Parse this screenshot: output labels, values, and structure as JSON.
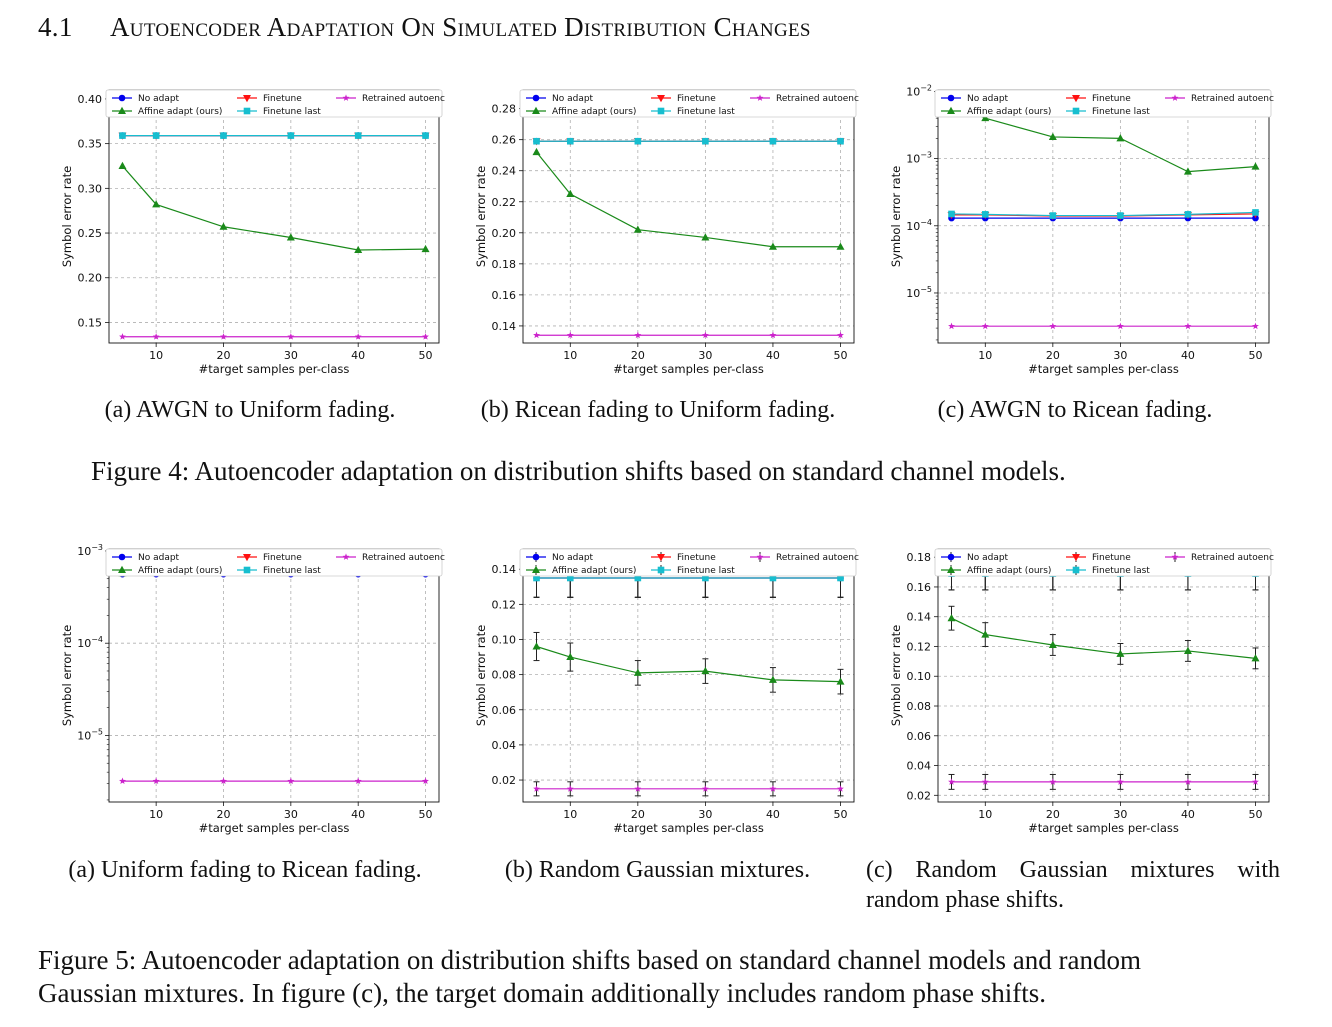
{
  "section": {
    "number": "4.1",
    "title": "Autoencoder Adaptation On Simulated Distribution Changes"
  },
  "colors": {
    "no_adapt": "#0000ee",
    "affine": "#1a8a1a",
    "finetune": "#ff1010",
    "finetune_last": "#17becf",
    "retrained": "#cc22cc"
  },
  "legend_labels": [
    "No adapt",
    "Finetune",
    "Retrained autoenc",
    "Affine adapt (ours)",
    "Finetune last"
  ],
  "figure4": {
    "caption": "Figure 4: Autoencoder adaptation on distribution shifts based on standard channel models."
  },
  "figure5": {
    "caption_line1": "Figure 5: Autoencoder adaptation on distribution shifts based on standard channel models and random",
    "caption_line2": "Gaussian mixtures. In figure (c), the target domain additionally includes random phase shifts."
  },
  "chart_data": [
    {
      "id": "fig4a",
      "type": "line",
      "scale": "linear",
      "caption": "(a) AWGN to Uniform fading.",
      "xlabel": "#target samples per-class",
      "ylabel": "Symbol error rate",
      "x": [
        5,
        10,
        20,
        30,
        40,
        50
      ],
      "xlim": [
        3,
        52
      ],
      "xticks": [
        10,
        20,
        30,
        40,
        50
      ],
      "ylim": [
        0.127,
        0.41
      ],
      "yticks": [
        0.15,
        0.2,
        0.25,
        0.3,
        0.35,
        0.4
      ],
      "ytick_labels": [
        "0.15",
        "0.20",
        "0.25",
        "0.30",
        "0.35",
        "0.40"
      ],
      "series": [
        {
          "name": "No adapt",
          "key": "no_adapt",
          "marker": "circle",
          "values": [
            0.359,
            0.359,
            0.359,
            0.359,
            0.359,
            0.359
          ]
        },
        {
          "name": "Finetune",
          "key": "finetune",
          "marker": "tri-down",
          "values": [
            0.359,
            0.359,
            0.359,
            0.359,
            0.359,
            0.359
          ]
        },
        {
          "name": "Finetune last",
          "key": "finetune_last",
          "marker": "square",
          "values": [
            0.359,
            0.359,
            0.359,
            0.359,
            0.359,
            0.359
          ]
        },
        {
          "name": "Affine adapt (ours)",
          "key": "affine",
          "marker": "tri-up",
          "values": [
            0.325,
            0.282,
            0.257,
            0.245,
            0.231,
            0.232
          ]
        },
        {
          "name": "Retrained autoenc",
          "key": "retrained",
          "marker": "star",
          "values": [
            0.134,
            0.134,
            0.134,
            0.134,
            0.134,
            0.134
          ]
        }
      ]
    },
    {
      "id": "fig4b",
      "type": "line",
      "scale": "linear",
      "caption": "(b) Ricean fading to Uniform fading.",
      "xlabel": "#target samples per-class",
      "ylabel": "Symbol error rate",
      "x": [
        5,
        10,
        20,
        30,
        40,
        50
      ],
      "xlim": [
        3,
        52
      ],
      "xticks": [
        10,
        20,
        30,
        40,
        50
      ],
      "ylim": [
        0.129,
        0.292
      ],
      "yticks": [
        0.14,
        0.16,
        0.18,
        0.2,
        0.22,
        0.24,
        0.26,
        0.28
      ],
      "ytick_labels": [
        "0.14",
        "0.16",
        "0.18",
        "0.20",
        "0.22",
        "0.24",
        "0.26",
        "0.28"
      ],
      "series": [
        {
          "name": "No adapt",
          "key": "no_adapt",
          "marker": "circle",
          "values": [
            0.259,
            0.259,
            0.259,
            0.259,
            0.259,
            0.259
          ]
        },
        {
          "name": "Finetune",
          "key": "finetune",
          "marker": "tri-down",
          "values": [
            0.259,
            0.259,
            0.259,
            0.259,
            0.259,
            0.259
          ]
        },
        {
          "name": "Finetune last",
          "key": "finetune_last",
          "marker": "square",
          "values": [
            0.259,
            0.259,
            0.259,
            0.259,
            0.259,
            0.259
          ]
        },
        {
          "name": "Affine adapt (ours)",
          "key": "affine",
          "marker": "tri-up",
          "values": [
            0.252,
            0.225,
            0.202,
            0.197,
            0.191,
            0.191
          ]
        },
        {
          "name": "Retrained autoenc",
          "key": "retrained",
          "marker": "star",
          "values": [
            0.134,
            0.134,
            0.134,
            0.134,
            0.134,
            0.134
          ]
        }
      ]
    },
    {
      "id": "fig4c",
      "type": "line",
      "scale": "log",
      "caption": "(c) AWGN to Ricean fading.",
      "xlabel": "#target samples per-class",
      "ylabel": "Symbol error rate",
      "x": [
        5,
        10,
        20,
        30,
        40,
        50
      ],
      "xlim": [
        3,
        52
      ],
      "xticks": [
        10,
        20,
        30,
        40,
        50
      ],
      "ylim": [
        1.8e-06,
        0.0105
      ],
      "yticks": [
        1e-05,
        0.0001,
        0.001,
        0.01
      ],
      "ytick_labels": [
        "10",
        "10",
        "10",
        "10"
      ],
      "ytick_exponents": [
        "−5",
        "−4",
        "−3",
        "−2"
      ],
      "series": [
        {
          "name": "No adapt",
          "key": "no_adapt",
          "marker": "circle",
          "values": [
            0.00013,
            0.00013,
            0.00013,
            0.00013,
            0.00013,
            0.00013
          ]
        },
        {
          "name": "Finetune",
          "key": "finetune",
          "marker": "tri-down",
          "values": [
            0.000145,
            0.000145,
            0.00014,
            0.00014,
            0.000145,
            0.00015
          ]
        },
        {
          "name": "Finetune last",
          "key": "finetune_last",
          "marker": "square",
          "values": [
            0.00015,
            0.000148,
            0.000142,
            0.000142,
            0.000148,
            0.000158
          ]
        },
        {
          "name": "Affine adapt (ours)",
          "key": "affine",
          "marker": "tri-up",
          "values": [
            0.0065,
            0.004,
            0.0021,
            0.002,
            0.00064,
            0.00076
          ]
        },
        {
          "name": "Retrained autoenc",
          "key": "retrained",
          "marker": "star",
          "values": [
            3.2e-06,
            3.2e-06,
            3.2e-06,
            3.2e-06,
            3.2e-06,
            3.2e-06
          ]
        }
      ]
    },
    {
      "id": "fig5a",
      "type": "line",
      "scale": "log",
      "caption": "(a) Uniform fading to Ricean fading.",
      "xlabel": "#target samples per-class",
      "ylabel": "Symbol error rate",
      "x": [
        5,
        10,
        20,
        30,
        40,
        50
      ],
      "xlim": [
        3,
        52
      ],
      "xticks": [
        10,
        20,
        30,
        40,
        50
      ],
      "ylim": [
        1.9e-06,
        0.00105
      ],
      "yticks": [
        1e-05,
        0.0001,
        0.001
      ],
      "ytick_labels": [
        "10",
        "10",
        "10"
      ],
      "ytick_exponents": [
        "−5",
        "−4",
        "−3"
      ],
      "series": [
        {
          "name": "No adapt",
          "key": "no_adapt",
          "marker": "circle",
          "values": [
            0.00056,
            0.00056,
            0.00056,
            0.00056,
            0.00056,
            0.00056
          ]
        },
        {
          "name": "Finetune",
          "key": "finetune",
          "marker": "tri-down",
          "values": [
            0.00075,
            0.00075,
            0.00078,
            0.00076,
            0.00075,
            0.00076
          ]
        },
        {
          "name": "Finetune last",
          "key": "finetune_last",
          "marker": "square",
          "values": [
            0.00076,
            0.00077,
            0.00079,
            0.00078,
            0.00077,
            0.00078
          ]
        },
        {
          "name": "Affine adapt (ours)",
          "key": "affine",
          "marker": "tri-up",
          "values": [
            0.00057,
            0.00063,
            0.00062,
            0.00069,
            0.00059,
            0.00061
          ]
        },
        {
          "name": "Retrained autoenc",
          "key": "retrained",
          "marker": "star",
          "values": [
            3.2e-06,
            3.2e-06,
            3.2e-06,
            3.2e-06,
            3.2e-06,
            3.2e-06
          ]
        }
      ]
    },
    {
      "id": "fig5b",
      "type": "line",
      "scale": "linear",
      "caption": "(b) Random Gaussian mixtures.",
      "xlabel": "#target samples per-class",
      "ylabel": "Symbol error rate",
      "x": [
        5,
        10,
        20,
        30,
        40,
        50
      ],
      "xlim": [
        3,
        52
      ],
      "xticks": [
        10,
        20,
        30,
        40,
        50
      ],
      "ylim": [
        0.0075,
        0.1515
      ],
      "yticks": [
        0.02,
        0.04,
        0.06,
        0.08,
        0.1,
        0.12,
        0.14
      ],
      "ytick_labels": [
        "0.02",
        "0.04",
        "0.06",
        "0.08",
        "0.10",
        "0.12",
        "0.14"
      ],
      "series": [
        {
          "name": "No adapt",
          "key": "no_adapt",
          "marker": "circle",
          "values": [
            0.135,
            0.135,
            0.135,
            0.135,
            0.135,
            0.135
          ],
          "err": [
            0.011,
            0.011,
            0.011,
            0.011,
            0.011,
            0.011
          ]
        },
        {
          "name": "Finetune",
          "key": "finetune",
          "marker": "tri-down",
          "values": [
            0.135,
            0.135,
            0.135,
            0.135,
            0.135,
            0.135
          ],
          "err": [
            0.011,
            0.011,
            0.011,
            0.011,
            0.011,
            0.011
          ]
        },
        {
          "name": "Finetune last",
          "key": "finetune_last",
          "marker": "square",
          "values": [
            0.135,
            0.135,
            0.135,
            0.135,
            0.135,
            0.135
          ],
          "err": [
            0.011,
            0.011,
            0.011,
            0.011,
            0.011,
            0.011
          ]
        },
        {
          "name": "Affine adapt (ours)",
          "key": "affine",
          "marker": "tri-up",
          "values": [
            0.096,
            0.09,
            0.081,
            0.082,
            0.077,
            0.076
          ],
          "err": [
            0.008,
            0.008,
            0.007,
            0.007,
            0.007,
            0.007
          ]
        },
        {
          "name": "Retrained autoenc",
          "key": "retrained",
          "marker": "star",
          "values": [
            0.015,
            0.015,
            0.015,
            0.015,
            0.015,
            0.015
          ],
          "err": [
            0.004,
            0.004,
            0.004,
            0.004,
            0.004,
            0.004
          ]
        }
      ]
    },
    {
      "id": "fig5c",
      "type": "line",
      "scale": "linear",
      "caption": "(c) Random Gaussian mixtures with random phase shifts.",
      "xlabel": "#target samples per-class",
      "ylabel": "Symbol error rate",
      "x": [
        5,
        10,
        20,
        30,
        40,
        50
      ],
      "xlim": [
        3,
        52
      ],
      "xticks": [
        10,
        20,
        30,
        40,
        50
      ],
      "ylim": [
        0.0155,
        0.1855
      ],
      "yticks": [
        0.02,
        0.04,
        0.06,
        0.08,
        0.1,
        0.12,
        0.14,
        0.16,
        0.18
      ],
      "ytick_labels": [
        "0.02",
        "0.04",
        "0.06",
        "0.08",
        "0.10",
        "0.12",
        "0.14",
        "0.16",
        "0.18"
      ],
      "series": [
        {
          "name": "No adapt",
          "key": "no_adapt",
          "marker": "circle",
          "values": [
            0.169,
            0.169,
            0.169,
            0.169,
            0.169,
            0.169
          ],
          "err": [
            0.011,
            0.011,
            0.011,
            0.011,
            0.011,
            0.011
          ]
        },
        {
          "name": "Finetune",
          "key": "finetune",
          "marker": "tri-down",
          "values": [
            0.169,
            0.169,
            0.169,
            0.169,
            0.169,
            0.169
          ],
          "err": [
            0.011,
            0.011,
            0.011,
            0.011,
            0.011,
            0.011
          ]
        },
        {
          "name": "Finetune last",
          "key": "finetune_last",
          "marker": "square",
          "values": [
            0.169,
            0.169,
            0.169,
            0.169,
            0.169,
            0.169
          ],
          "err": [
            0.011,
            0.011,
            0.011,
            0.011,
            0.011,
            0.011
          ]
        },
        {
          "name": "Affine adapt (ours)",
          "key": "affine",
          "marker": "tri-up",
          "values": [
            0.139,
            0.128,
            0.121,
            0.115,
            0.117,
            0.112
          ],
          "err": [
            0.008,
            0.008,
            0.007,
            0.007,
            0.007,
            0.007
          ]
        },
        {
          "name": "Retrained autoenc",
          "key": "retrained",
          "marker": "star",
          "values": [
            0.029,
            0.029,
            0.029,
            0.029,
            0.029,
            0.029
          ],
          "err": [
            0.005,
            0.005,
            0.005,
            0.005,
            0.005,
            0.005
          ]
        }
      ]
    }
  ]
}
